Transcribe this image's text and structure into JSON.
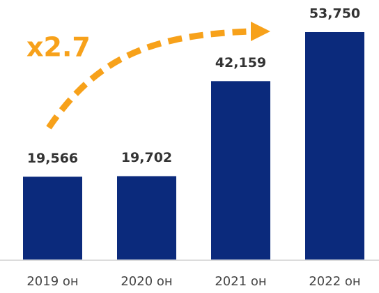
{
  "chart_data": {
    "type": "bar",
    "categories": [
      "2019 он",
      "2020 он",
      "2021 он",
      "2022 он"
    ],
    "values": [
      19566,
      19702,
      42159,
      53750
    ],
    "value_labels": [
      "19,566",
      "19,702",
      "42,159",
      "53,750"
    ],
    "color": "#0b2a7c",
    "annotation": {
      "text": "x2.7",
      "color": "#f7a11a"
    }
  }
}
